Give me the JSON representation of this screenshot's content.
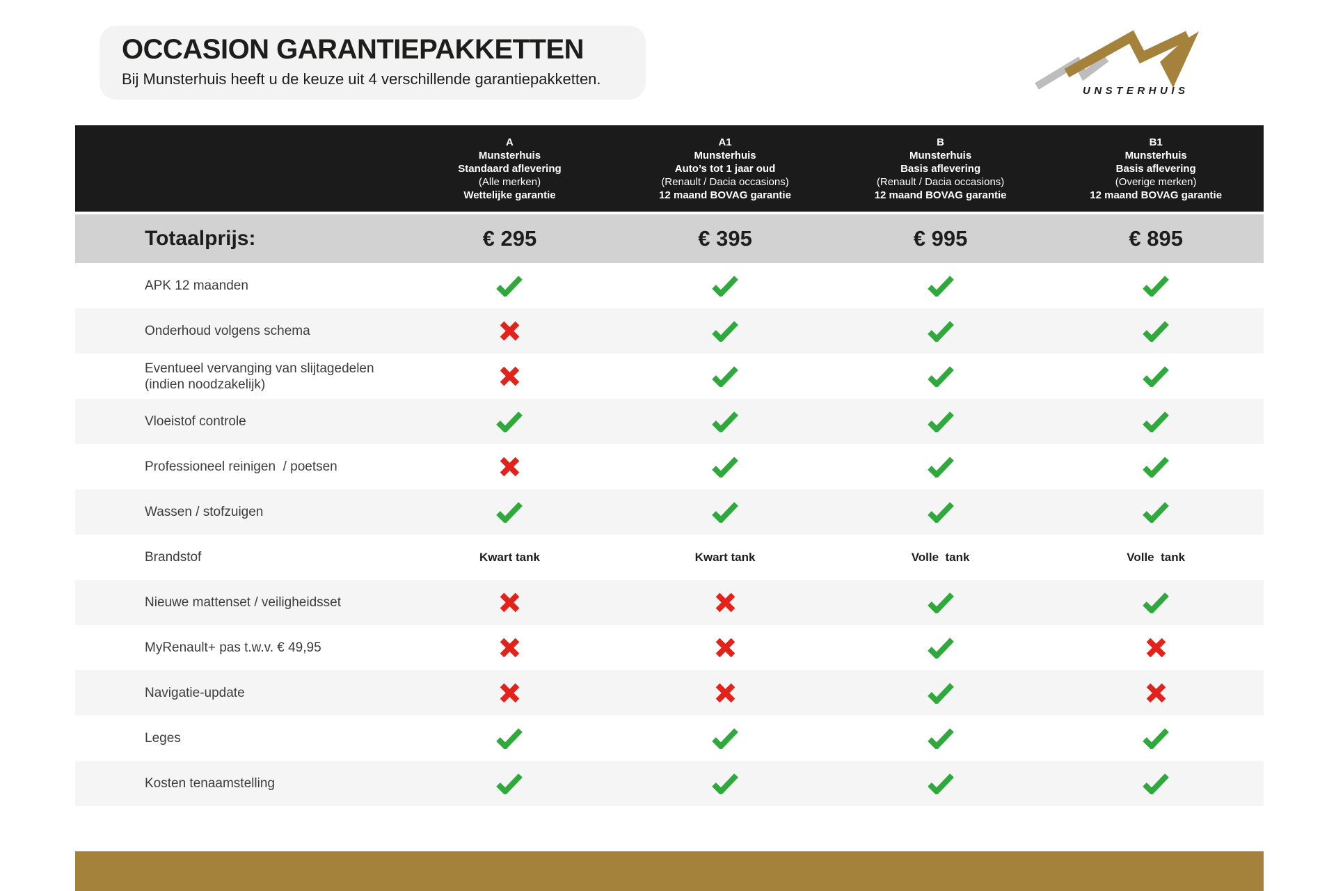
{
  "page": {
    "title": "OCCASION GARANTIEPAKKETTEN",
    "subtitle": "Bij Munsterhuis heeft u de keuze uit 4 verschillende garantiepakketten."
  },
  "logo": {
    "brand": "MUNSTERHUIS",
    "wordmark": "UNSTERHUIS"
  },
  "colors": {
    "header_bg": "#1b1b1b",
    "totals_bg": "#d2d2d2",
    "alt_row_bg": "#f5f5f5",
    "title_box_bg": "#f3f3f3",
    "check_green": "#2fa83c",
    "cross_red": "#e1231c",
    "brand_gold": "#a5823c",
    "logo_gray": "#bdbdbd",
    "text_dark": "#1d1d1b",
    "label_gray": "#3c3c3b"
  },
  "table": {
    "totals_label": "Totaalprijs:",
    "packages": [
      {
        "code": "A",
        "brand": "Munsterhuis",
        "delivery": "Standaard aflevering",
        "scope": "(Alle merken)",
        "warranty": "Wettelijke garantie",
        "price": "€ 295"
      },
      {
        "code": "A1",
        "brand": "Munsterhuis",
        "delivery": "Auto’s tot 1 jaar oud",
        "scope": "(Renault / Dacia occasions)",
        "warranty": "12 maand BOVAG garantie",
        "price": "€ 395"
      },
      {
        "code": "B",
        "brand": "Munsterhuis",
        "delivery": "Basis aflevering",
        "scope": "(Renault / Dacia occasions)",
        "warranty": "12 maand BOVAG garantie",
        "price": "€ 995"
      },
      {
        "code": "B1",
        "brand": "Munsterhuis",
        "delivery": "Basis aflevering",
        "scope": "(Overige merken)",
        "warranty": "12 maand BOVAG garantie",
        "price": "€ 895"
      }
    ],
    "rows": [
      {
        "label": "APK 12 maanden",
        "values": [
          "check",
          "check",
          "check",
          "check"
        ]
      },
      {
        "label": "Onderhoud volgens schema",
        "values": [
          "cross",
          "check",
          "check",
          "check"
        ]
      },
      {
        "label": "Eventueel vervanging van slijtagedelen\n(indien noodzakelijk)",
        "values": [
          "cross",
          "check",
          "check",
          "check"
        ]
      },
      {
        "label": "Vloeistof controle",
        "values": [
          "check",
          "check",
          "check",
          "check"
        ]
      },
      {
        "label": "Professioneel reinigen  / poetsen",
        "values": [
          "cross",
          "check",
          "check",
          "check"
        ]
      },
      {
        "label": "Wassen / stofzuigen",
        "values": [
          "check",
          "check",
          "check",
          "check"
        ]
      },
      {
        "label": "Brandstof",
        "values": [
          "Kwart tank",
          "Kwart tank",
          "Volle  tank",
          "Volle  tank"
        ]
      },
      {
        "label": "Nieuwe mattenset / veiligheidsset",
        "values": [
          "cross",
          "cross",
          "check",
          "check"
        ]
      },
      {
        "label": "MyRenault+ pas t.w.v. € 49,95",
        "values": [
          "cross",
          "cross",
          "check",
          "cross"
        ]
      },
      {
        "label": "Navigatie-update",
        "values": [
          "cross",
          "cross",
          "check",
          "cross"
        ]
      },
      {
        "label": "Leges",
        "values": [
          "check",
          "check",
          "check",
          "check"
        ]
      },
      {
        "label": "Kosten tenaamstelling",
        "values": [
          "check",
          "check",
          "check",
          "check"
        ]
      }
    ]
  }
}
